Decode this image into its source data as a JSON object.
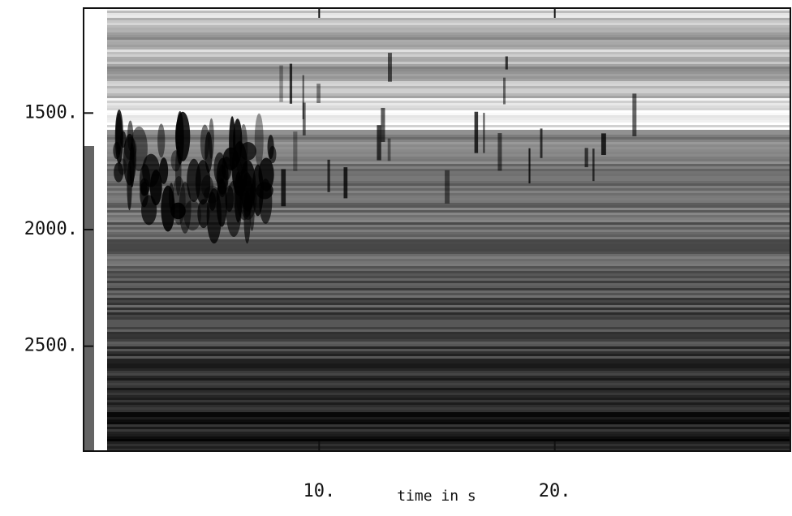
{
  "chart_data": {
    "type": "spectrogram",
    "xlabel": "time in s",
    "xlim": [
      0,
      30
    ],
    "xticks": [
      {
        "value": 10,
        "label": "10."
      },
      {
        "value": 20,
        "label": "20."
      }
    ],
    "ylim": [
      1050,
      2950
    ],
    "yticks": [
      {
        "value": 1500,
        "label": "1500."
      },
      {
        "value": 2000,
        "label": "2000."
      },
      {
        "value": 2500,
        "label": "2500."
      }
    ]
  }
}
